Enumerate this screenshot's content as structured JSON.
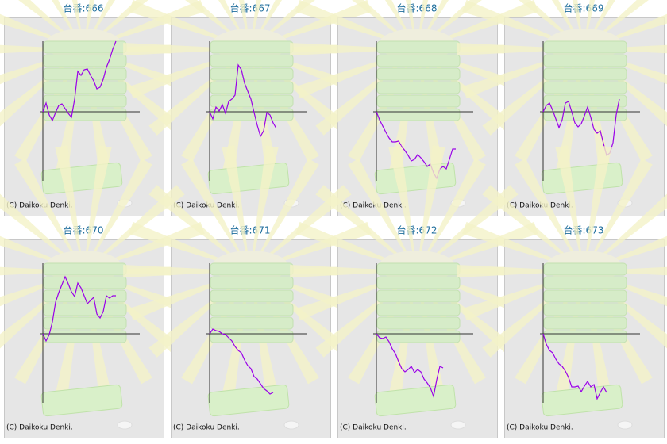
{
  "chart_data": [
    {
      "type": "line",
      "title": "台番:666",
      "annotation": "(C) Daikoku Denki.",
      "color": "#9a00e8",
      "xlim": [
        0,
        30
      ],
      "ylim": [
        -87,
        89
      ],
      "values": [
        0,
        11,
        -4,
        -11,
        -1,
        8,
        10,
        4,
        -2,
        -7,
        16,
        51,
        46,
        53,
        54,
        46,
        39,
        29,
        31,
        41,
        56,
        66,
        79,
        89
      ]
    },
    {
      "type": "line",
      "title": "台番:667",
      "annotation": "(C) Daikoku Denki.",
      "color": "#9a00e8",
      "xlim": [
        0,
        30
      ],
      "ylim": [
        -87,
        89
      ],
      "values": [
        0,
        -9,
        6,
        1,
        9,
        -2,
        13,
        16,
        21,
        59,
        53,
        36,
        26,
        16,
        -1,
        -17,
        -31,
        -24,
        -1,
        -4,
        -14,
        -21
      ]
    },
    {
      "type": "line",
      "title": "台番:668",
      "annotation": "(C) Daikoku Denki.",
      "color": "#9a00e8",
      "xlim": [
        0,
        30
      ],
      "ylim": [
        -87,
        89
      ],
      "values": [
        0,
        -10,
        -18,
        -26,
        -33,
        -38,
        -38,
        -37,
        -44,
        -49,
        -55,
        -62,
        -60,
        -54,
        -58,
        -63,
        -69,
        -66,
        -77,
        -84,
        -72,
        -69,
        -72,
        -60,
        -47,
        -47
      ]
    },
    {
      "type": "line",
      "title": "台番:669",
      "annotation": "(C) Daikoku Denki.",
      "color": "#9a00e8",
      "xlim": [
        0,
        30
      ],
      "ylim": [
        -87,
        89
      ],
      "values": [
        0,
        8,
        11,
        2,
        -9,
        -20,
        -10,
        11,
        13,
        0,
        -14,
        -19,
        -15,
        -5,
        6,
        -7,
        -22,
        -27,
        -24,
        -40,
        -55,
        -52,
        -39,
        -4,
        16
      ]
    },
    {
      "type": "line",
      "title": "台番:670",
      "annotation": "(C) Daikoku Denki.",
      "color": "#9a00e8",
      "xlim": [
        0,
        30
      ],
      "ylim": [
        -87,
        89
      ],
      "values": [
        0,
        -9,
        -1,
        15,
        40,
        52,
        62,
        72,
        63,
        53,
        47,
        64,
        58,
        48,
        38,
        42,
        46,
        25,
        20,
        28,
        48,
        45,
        48,
        48
      ]
    },
    {
      "type": "line",
      "title": "台番:671",
      "annotation": "(C) Daikoku Denki.",
      "color": "#9a00e8",
      "xlim": [
        0,
        30
      ],
      "ylim": [
        -87,
        89
      ],
      "values": [
        0,
        6,
        4,
        3,
        0,
        -1,
        -5,
        -9,
        -16,
        -21,
        -24,
        -33,
        -40,
        -44,
        -54,
        -57,
        -63,
        -69,
        -72,
        -76,
        -74
      ]
    },
    {
      "type": "line",
      "title": "台番:672",
      "annotation": "(C) Daikoku Denki.",
      "color": "#9a00e8",
      "xlim": [
        0,
        30
      ],
      "ylim": [
        -87,
        89
      ],
      "values": [
        0,
        -5,
        -6,
        -4,
        -10,
        -19,
        -25,
        -35,
        -44,
        -48,
        -45,
        -41,
        -49,
        -45,
        -48,
        -57,
        -62,
        -68,
        -79,
        -58,
        -41,
        -43
      ]
    },
    {
      "type": "line",
      "title": "台番:673",
      "annotation": "(C) Daikoku Denki.",
      "color": "#9a00e8",
      "xlim": [
        0,
        30
      ],
      "ylim": [
        -87,
        89
      ],
      "values": [
        0,
        -13,
        -21,
        -24,
        -32,
        -38,
        -41,
        -47,
        -55,
        -67,
        -67,
        -66,
        -73,
        -66,
        -60,
        -67,
        -64,
        -82,
        -74,
        -67,
        -74
      ]
    }
  ]
}
